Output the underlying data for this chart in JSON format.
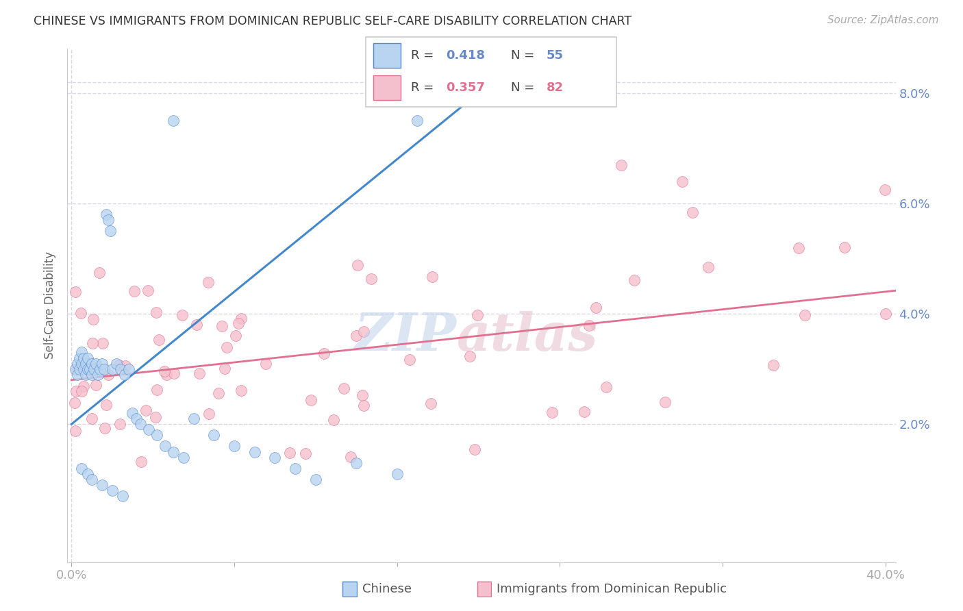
{
  "title": "CHINESE VS IMMIGRANTS FROM DOMINICAN REPUBLIC SELF-CARE DISABILITY CORRELATION CHART",
  "source": "Source: ZipAtlas.com",
  "ylabel": "Self-Care Disability",
  "xlim": [
    -0.002,
    0.405
  ],
  "ylim": [
    -0.005,
    0.088
  ],
  "yticks": [
    0.02,
    0.04,
    0.06,
    0.08
  ],
  "ytick_labels": [
    "2.0%",
    "4.0%",
    "6.0%",
    "8.0%"
  ],
  "xticks": [
    0.0,
    0.08,
    0.16,
    0.24,
    0.32,
    0.4
  ],
  "xtick_labels": [
    "0.0%",
    "",
    "",
    "",
    "",
    "40.0%"
  ],
  "blue_scatter_color": "#b8d4f0",
  "blue_edge_color": "#5588cc",
  "blue_line_color": "#4488cc",
  "pink_scatter_color": "#f5c0ce",
  "pink_edge_color": "#e07090",
  "pink_line_color": "#e07090",
  "axis_label_color": "#6688cc",
  "grid_color": "#d8d8e8",
  "title_color": "#333333",
  "source_color": "#aaaaaa",
  "ylabel_color": "#666666",
  "ch_slope": 0.3,
  "ch_intercept": 0.02,
  "dom_slope": 0.04,
  "dom_intercept": 0.028,
  "ch_line_xmax": 0.22,
  "watermark_zip_color": "#c8d8ee",
  "watermark_atlas_color": "#e8b8c8"
}
